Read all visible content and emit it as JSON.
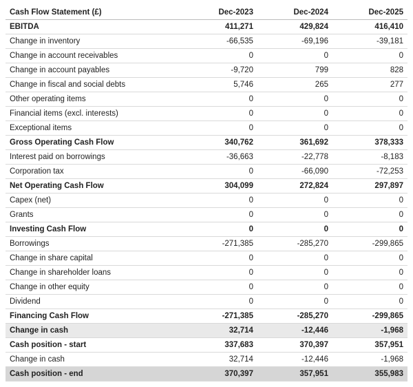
{
  "table": {
    "headers": [
      "Cash Flow Statement (£)",
      "Dec-2023",
      "Dec-2024",
      "Dec-2025"
    ],
    "rows": [
      {
        "label": "EBITDA",
        "v": [
          "411,271",
          "429,824",
          "416,410"
        ],
        "style": "bold"
      },
      {
        "label": "Change in inventory",
        "v": [
          "-66,535",
          "-69,196",
          "-39,181"
        ],
        "style": ""
      },
      {
        "label": "Change in account receivables",
        "v": [
          "0",
          "0",
          "0"
        ],
        "style": ""
      },
      {
        "label": "Change in account payables",
        "v": [
          "-9,720",
          "799",
          "828"
        ],
        "style": ""
      },
      {
        "label": "Change in fiscal and social debts",
        "v": [
          "5,746",
          "265",
          "277"
        ],
        "style": ""
      },
      {
        "label": "Other operating items",
        "v": [
          "0",
          "0",
          "0"
        ],
        "style": ""
      },
      {
        "label": "Financial items (excl. interests)",
        "v": [
          "0",
          "0",
          "0"
        ],
        "style": ""
      },
      {
        "label": "Exceptional items",
        "v": [
          "0",
          "0",
          "0"
        ],
        "style": ""
      },
      {
        "label": "Gross Operating Cash Flow",
        "v": [
          "340,762",
          "361,692",
          "378,333"
        ],
        "style": "bold"
      },
      {
        "label": "Interest paid on borrowings",
        "v": [
          "-36,663",
          "-22,778",
          "-8,183"
        ],
        "style": ""
      },
      {
        "label": "Corporation tax",
        "v": [
          "0",
          "-66,090",
          "-72,253"
        ],
        "style": ""
      },
      {
        "label": "Net Operating Cash Flow",
        "v": [
          "304,099",
          "272,824",
          "297,897"
        ],
        "style": "bold"
      },
      {
        "label": "Capex (net)",
        "v": [
          "0",
          "0",
          "0"
        ],
        "style": ""
      },
      {
        "label": "Grants",
        "v": [
          "0",
          "0",
          "0"
        ],
        "style": ""
      },
      {
        "label": "Investing Cash Flow",
        "v": [
          "0",
          "0",
          "0"
        ],
        "style": "bold"
      },
      {
        "label": "Borrowings",
        "v": [
          "-271,385",
          "-285,270",
          "-299,865"
        ],
        "style": ""
      },
      {
        "label": "Change in share capital",
        "v": [
          "0",
          "0",
          "0"
        ],
        "style": ""
      },
      {
        "label": "Change in shareholder loans",
        "v": [
          "0",
          "0",
          "0"
        ],
        "style": ""
      },
      {
        "label": "Change in other equity",
        "v": [
          "0",
          "0",
          "0"
        ],
        "style": ""
      },
      {
        "label": "Dividend",
        "v": [
          "0",
          "0",
          "0"
        ],
        "style": ""
      },
      {
        "label": "Financing Cash Flow",
        "v": [
          "-271,385",
          "-285,270",
          "-299,865"
        ],
        "style": "bold"
      },
      {
        "label": "Change in cash",
        "v": [
          "32,714",
          "-12,446",
          "-1,968"
        ],
        "style": "shade"
      },
      {
        "label": "Cash position - start",
        "v": [
          "337,683",
          "370,397",
          "357,951"
        ],
        "style": "bold"
      },
      {
        "label": "Change in cash",
        "v": [
          "32,714",
          "-12,446",
          "-1,968"
        ],
        "style": ""
      },
      {
        "label": "Cash position - end",
        "v": [
          "370,397",
          "357,951",
          "355,983"
        ],
        "style": "shade-dark"
      }
    ]
  }
}
